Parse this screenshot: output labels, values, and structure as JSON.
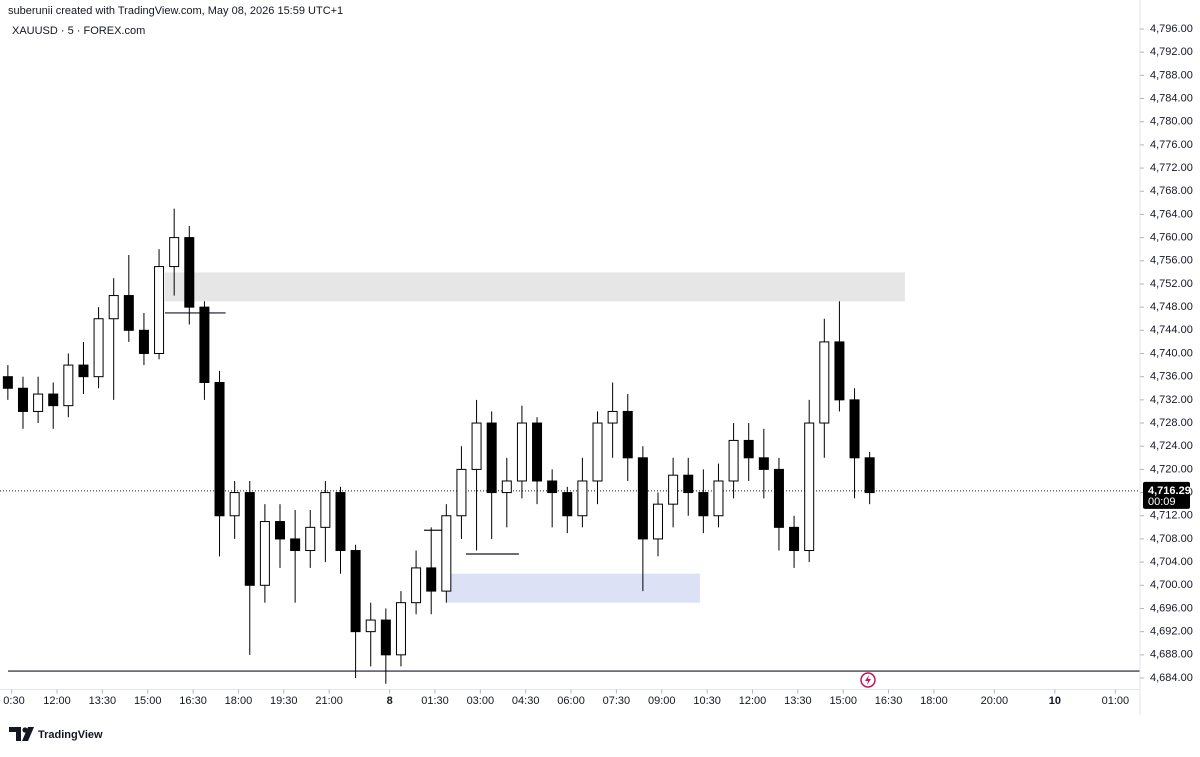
{
  "header": {
    "text": "suberunii created with TradingView.com, May 08, 2026 15:59 UTC+1"
  },
  "chart_data": {
    "type": "candlestick",
    "symbol": "XAUUSD · 5 · FOREX.com",
    "x": [
      0,
      1,
      2,
      3,
      4,
      5,
      6,
      7,
      8,
      9,
      10,
      11,
      12,
      13,
      14,
      15,
      16,
      17,
      18,
      19,
      20,
      21,
      22,
      23,
      24,
      25,
      26,
      27,
      28,
      29,
      30,
      31,
      32,
      33,
      34,
      35,
      36,
      37,
      38,
      39,
      40,
      41,
      42,
      43,
      44,
      45,
      46,
      47,
      48,
      49,
      50,
      51,
      52,
      53,
      54,
      55,
      56,
      57
    ],
    "open": [
      4736,
      4734,
      4730,
      4733,
      4731,
      4738,
      4736,
      4746,
      4750,
      4744,
      4740,
      4755,
      4760,
      4748,
      4735,
      4712,
      4716,
      4700,
      4711,
      4708,
      4706,
      4710,
      4716,
      4706,
      4692,
      4694,
      4688,
      4697,
      4703,
      4699,
      4712,
      4720,
      4728,
      4716,
      4718,
      4728,
      4718,
      4716,
      4712,
      4718,
      4728,
      4730,
      4722,
      4708,
      4714,
      4719,
      4716,
      4712,
      4718,
      4725,
      4722,
      4720,
      4710,
      4706,
      4728,
      4742,
      4732,
      4722
    ],
    "high": [
      4738,
      4736,
      4736,
      4735,
      4740,
      4742,
      4748,
      4753,
      4757,
      4747,
      4758,
      4765,
      4762,
      4749,
      4737,
      4718,
      4718,
      4714,
      4714,
      4713,
      4713,
      4718,
      4717,
      4707,
      4697,
      4696,
      4699,
      4706,
      4710,
      4714,
      4724,
      4732,
      4730,
      4722,
      4731,
      4729,
      4720,
      4717,
      4722,
      4730,
      4735,
      4733,
      4724,
      4716,
      4722,
      4722,
      4720,
      4721,
      4728,
      4728,
      4727,
      4722,
      4712,
      4732,
      4746,
      4749,
      4734,
      4723
    ],
    "low": [
      4732,
      4727,
      4728,
      4727,
      4729,
      4733,
      4734,
      4732,
      4742,
      4738,
      4739,
      4750,
      4745,
      4732,
      4705,
      4708,
      4688,
      4697,
      4703,
      4697,
      4703,
      4704,
      4702,
      4684,
      4686,
      4683,
      4686,
      4695,
      4695,
      4697,
      4708,
      4706,
      4708,
      4710,
      4715,
      4714,
      4710,
      4709,
      4710,
      4714,
      4722,
      4718,
      4699,
      4705,
      4710,
      4712,
      4709,
      4710,
      4715,
      4718,
      4715,
      4706,
      4703,
      4704,
      4722,
      4730,
      4715,
      4714
    ],
    "close": [
      4734,
      4730,
      4733,
      4731,
      4738,
      4736,
      4746,
      4750,
      4744,
      4740,
      4755,
      4760,
      4748,
      4735,
      4712,
      4716,
      4700,
      4711,
      4708,
      4706,
      4710,
      4716,
      4706,
      4692,
      4694,
      4688,
      4697,
      4703,
      4699,
      4712,
      4720,
      4728,
      4716,
      4718,
      4728,
      4718,
      4716,
      4712,
      4718,
      4728,
      4730,
      4722,
      4708,
      4714,
      4719,
      4716,
      4712,
      4718,
      4725,
      4722,
      4720,
      4710,
      4706,
      4728,
      4742,
      4732,
      4722,
      4716
    ],
    "up_color": "#ffffff",
    "down_color": "#000000",
    "xlim": [
      -0.52,
      74.88
    ],
    "xticks": [
      {
        "value": 0.25,
        "label": "0:30"
      },
      {
        "value": 3.25,
        "label": "12:00"
      },
      {
        "value": 6.25,
        "label": "13:30"
      },
      {
        "value": 9.25,
        "label": "15:00"
      },
      {
        "value": 12.25,
        "label": "16:30"
      },
      {
        "value": 15.25,
        "label": "18:00"
      },
      {
        "value": 18.25,
        "label": "19:30"
      },
      {
        "value": 21.25,
        "label": "21:00"
      },
      {
        "value": 25.25,
        "label": "8"
      },
      {
        "value": 28.25,
        "label": "01:30"
      },
      {
        "value": 31.25,
        "label": "03:00"
      },
      {
        "value": 34.25,
        "label": "04:30"
      },
      {
        "value": 37.25,
        "label": "06:00"
      },
      {
        "value": 40.25,
        "label": "07:30"
      },
      {
        "value": 43.25,
        "label": "09:00"
      },
      {
        "value": 46.25,
        "label": "10:30"
      },
      {
        "value": 49.25,
        "label": "12:00"
      },
      {
        "value": 52.25,
        "label": "13:30"
      },
      {
        "value": 55.25,
        "label": "15:00"
      },
      {
        "value": 58.25,
        "label": "16:30"
      },
      {
        "value": 61.25,
        "label": "18:00"
      },
      {
        "value": 65.25,
        "label": "20:00"
      },
      {
        "value": 69.25,
        "label": "10"
      },
      {
        "value": 73.25,
        "label": "01:00"
      }
    ],
    "ylim": [
      4682,
      4798
    ],
    "yticks": [
      {
        "value": 4684,
        "label": "4,684.00"
      },
      {
        "value": 4688,
        "label": "4,688.00"
      },
      {
        "value": 4692,
        "label": "4,692.00"
      },
      {
        "value": 4696,
        "label": "4,696.00"
      },
      {
        "value": 4700,
        "label": "4,700.00"
      },
      {
        "value": 4704,
        "label": "4,704.00"
      },
      {
        "value": 4708,
        "label": "4,708.00"
      },
      {
        "value": 4712,
        "label": "4,712.00"
      },
      {
        "value": 4716,
        "label": "4,716.00"
      },
      {
        "value": 4720,
        "label": "4,720.00"
      },
      {
        "value": 4724,
        "label": "4,724.00"
      },
      {
        "value": 4728,
        "label": "4,728.00"
      },
      {
        "value": 4732,
        "label": "4,732.00"
      },
      {
        "value": 4736,
        "label": "4,736.00"
      },
      {
        "value": 4740,
        "label": "4,740.00"
      },
      {
        "value": 4744,
        "label": "4,744.00"
      },
      {
        "value": 4748,
        "label": "4,748.00"
      },
      {
        "value": 4752,
        "label": "4,752.00"
      },
      {
        "value": 4756,
        "label": "4,756.00"
      },
      {
        "value": 4760,
        "label": "4,760.00"
      },
      {
        "value": 4764,
        "label": "4,764.00"
      },
      {
        "value": 4768,
        "label": "4,768.00"
      },
      {
        "value": 4772,
        "label": "4,772.00"
      },
      {
        "value": 4776,
        "label": "4,776.00"
      },
      {
        "value": 4780,
        "label": "4,780.00"
      },
      {
        "value": 4784,
        "label": "4,784.00"
      },
      {
        "value": 4788,
        "label": "4,788.00"
      },
      {
        "value": 4792,
        "label": "4,792.00"
      },
      {
        "value": 4796,
        "label": "4,796.00"
      }
    ],
    "last_price": {
      "value": 4716.29,
      "label": "4,716.29"
    },
    "countdown": "00:09",
    "zones": [
      {
        "x": [
          10.39,
          59.33
        ],
        "y": [
          4749,
          4754
        ],
        "color": "#e6e6e6"
      },
      {
        "x": [
          29.04,
          45.78
        ],
        "y": [
          4697,
          4702
        ],
        "color": "#dde1f5"
      }
    ],
    "levels": [
      {
        "x": [
          10.39,
          14.4
        ],
        "y": 4747
      },
      {
        "x": [
          27.52,
          29.1
        ],
        "y": 4709.5
      },
      {
        "x": [
          30.3,
          33.8
        ],
        "y": 4705.4
      }
    ],
    "baseline": 4685.2
  },
  "footer": {
    "brand": "TradingView"
  }
}
